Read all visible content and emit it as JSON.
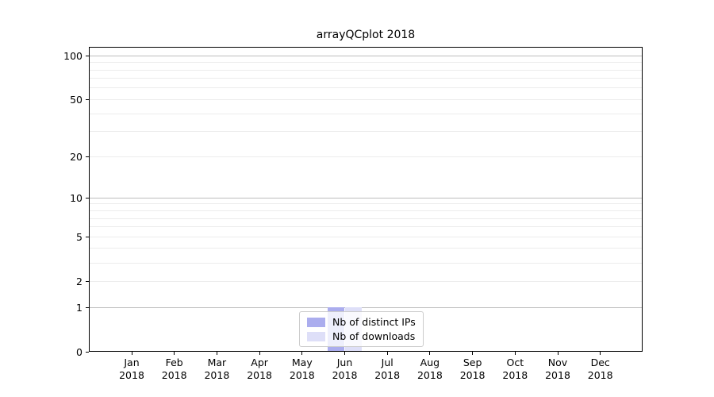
{
  "chart_data": {
    "type": "bar",
    "title": "arrayQCplot 2018",
    "categories": [
      "Jan",
      "Feb",
      "Mar",
      "Apr",
      "May",
      "Jun",
      "Jul",
      "Aug",
      "Sep",
      "Oct",
      "Nov",
      "Dec"
    ],
    "category_year": "2018",
    "series": [
      {
        "name": "Nb of distinct IPs",
        "color": "#abadee",
        "values": [
          0,
          0,
          0,
          0,
          0,
          1,
          0,
          0,
          0,
          0,
          0,
          0
        ]
      },
      {
        "name": "Nb of downloads",
        "color": "#dedff8",
        "values": [
          0,
          0,
          0,
          0,
          0,
          1,
          0,
          0,
          0,
          0,
          0,
          0
        ]
      }
    ],
    "yscale": "log1p",
    "ylim": [
      0,
      115
    ],
    "ytick_labels": [
      "0",
      "1",
      "2",
      "5",
      "10",
      "20",
      "50",
      "100"
    ],
    "ytick_values": [
      0,
      1,
      2,
      5,
      10,
      20,
      50,
      100
    ],
    "major_gridlines": [
      1,
      10,
      100
    ],
    "minor_gridlines": [
      2,
      3,
      4,
      5,
      6,
      7,
      8,
      9,
      20,
      30,
      40,
      50,
      60,
      70,
      80,
      90
    ],
    "colors": {
      "major_grid": "#bdbdbd",
      "minor_grid": "#ececec",
      "axis": "#000000",
      "legend_border": "#cccccc",
      "background": "#ffffff"
    },
    "legend": {
      "position": "lower center",
      "entries": [
        "Nb of distinct IPs",
        "Nb of downloads"
      ]
    }
  }
}
